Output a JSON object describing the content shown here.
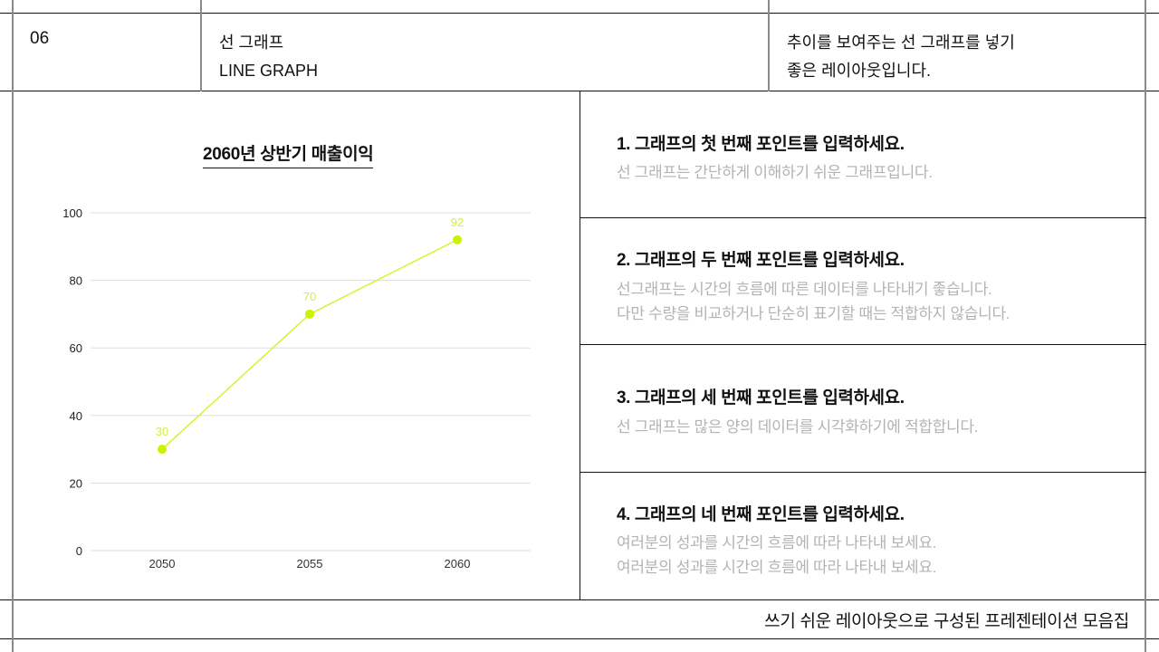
{
  "header": {
    "number": "06",
    "title_ko": "선 그래프",
    "title_en": "LINE GRAPH",
    "description_line1": "추이를 보여주는 선 그래프를 넣기",
    "description_line2": "좋은 레이아웃입니다."
  },
  "chart": {
    "title": "2060년 상반기 매출이익",
    "line_color": "#d6f53a",
    "marker_color": "#ccf200",
    "label_color": "#d2ef3c",
    "grid_color": "#dddddd"
  },
  "chart_data": {
    "type": "line",
    "title": "2060년 상반기 매출이익",
    "xlabel": "",
    "ylabel": "",
    "categories": [
      "2050",
      "2055",
      "2060"
    ],
    "values": [
      30,
      70,
      92
    ],
    "data_labels": [
      "30",
      "70",
      "92"
    ],
    "yticks": [
      0,
      20,
      40,
      60,
      80,
      100
    ],
    "ylim": [
      0,
      100
    ],
    "grid": true,
    "legend": null
  },
  "points": [
    {
      "title": "1. 그래프의 첫 번째 포인트를 입력하세요.",
      "lines": [
        "선 그래프는 간단하게 이해하기 쉬운 그래프입니다."
      ]
    },
    {
      "title": "2. 그래프의 두 번째 포인트를 입력하세요.",
      "lines": [
        "선그래프는 시간의 흐름에 따른 데이터를 나타내기 좋습니다.",
        "다만 수량을 비교하거나 단순히 표기할 때는 적합하지 않습니다."
      ]
    },
    {
      "title": "3. 그래프의 세 번째 포인트를 입력하세요.",
      "lines": [
        "선 그래프는 많은 양의 데이터를 시각화하기에 적합합니다."
      ]
    },
    {
      "title": "4. 그래프의 네 번째 포인트를 입력하세요.",
      "lines": [
        "여러분의 성과를 시간의 흐름에 따라 나타내 보세요.",
        "여러분의 성과를 시간의 흐름에 따라 나타내 보세요."
      ]
    }
  ],
  "footer": {
    "text": "쓰기 쉬운 레이아웃으로 구성된 프레젠테이션 모음집"
  }
}
